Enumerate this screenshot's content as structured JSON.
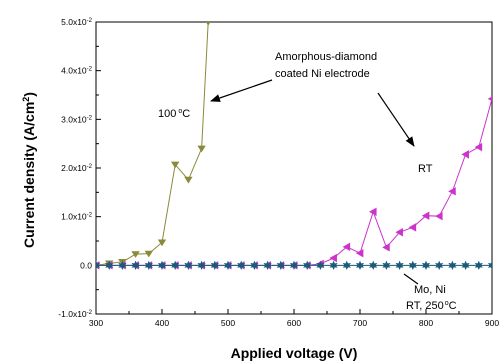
{
  "chart_data": {
    "type": "line",
    "xlabel": "Applied voltage (V)",
    "ylabel_main": "Current density (A/cm",
    "ylabel_sup": "2",
    "ylabel_close": ")",
    "xlim": [
      300,
      900
    ],
    "ylim": [
      -0.01,
      0.05
    ],
    "x_ticks": [
      300,
      400,
      500,
      600,
      700,
      800,
      900
    ],
    "x_tick_labels": [
      "300",
      "400",
      "500",
      "600",
      "700",
      "800",
      "900"
    ],
    "y_ticks": [
      -0.01,
      0,
      0.01,
      0.02,
      0.03,
      0.04,
      0.05
    ],
    "y_tick_labels": [
      "-1.0x10",
      "0.0",
      "1.0x10",
      "2.0x10",
      "3.0x10",
      "4.0x10",
      "5.0x10"
    ],
    "y_tick_exps": [
      "-2",
      "",
      "-2",
      "-2",
      "-2",
      "-2",
      "-2"
    ],
    "series": [
      {
        "color": "#8a8a3a",
        "marker": "triangle-down",
        "x": [
          300,
          320,
          340,
          360,
          380,
          400,
          420,
          440,
          460,
          470
        ],
        "y": [
          0.0,
          0.0004,
          0.0007,
          0.0023,
          0.0024,
          0.0047,
          0.0207,
          0.0176,
          0.024,
          0.05
        ]
      },
      {
        "color": "#cc33cc",
        "marker": "triangle-left",
        "x": [
          300,
          320,
          340,
          360,
          380,
          400,
          420,
          440,
          460,
          480,
          500,
          520,
          540,
          560,
          580,
          600,
          620,
          640,
          660,
          680,
          700,
          720,
          740,
          760,
          780,
          800,
          820,
          840,
          860,
          880,
          900
        ],
        "y": [
          0,
          0,
          0,
          0,
          0,
          0,
          0,
          0,
          0,
          0,
          0,
          0,
          0,
          0,
          0,
          0,
          0,
          0.0003,
          0.0015,
          0.0038,
          0.0025,
          0.011,
          0.0037,
          0.0068,
          0.0078,
          0.0102,
          0.0101,
          0.0152,
          0.0228,
          0.0243,
          0.0342
        ]
      },
      {
        "color": "#1a5a7a",
        "marker": "star",
        "x": [
          300,
          320,
          340,
          360,
          380,
          400,
          420,
          440,
          460,
          480,
          500,
          520,
          540,
          560,
          580,
          600,
          620,
          640,
          660,
          680,
          700,
          720,
          740,
          760,
          780,
          800,
          820,
          840,
          860,
          880,
          900
        ],
        "y": [
          0,
          0,
          0,
          0,
          0,
          0,
          0,
          0,
          0,
          0,
          0,
          0,
          0,
          0,
          0,
          0,
          0,
          0,
          0,
          0,
          0,
          0,
          0,
          0,
          0,
          0,
          0,
          0,
          0,
          0,
          0
        ]
      }
    ],
    "annotations": {
      "amorphous_line1": "Amorphous-diamond",
      "amorphous_line2": "coated Ni electrode",
      "label_100c_num": "100",
      "label_100c_unit": "C",
      "label_rt": "RT",
      "mo_ni_line1": "Mo, Ni",
      "mo_ni_line2_prefix": "RT, 250",
      "mo_ni_line2_unit": "C"
    }
  }
}
